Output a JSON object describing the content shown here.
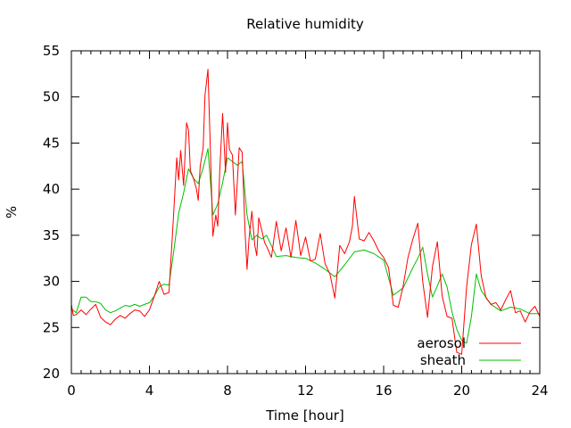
{
  "chart_data": {
    "type": "line",
    "title": "Relative humidity",
    "xlabel": "Time [hour]",
    "ylabel": "%",
    "xlim": [
      0,
      24
    ],
    "ylim": [
      20,
      55
    ],
    "xticks": [
      "0",
      "4",
      "8",
      "12",
      "16",
      "20",
      "24"
    ],
    "yticks": [
      "20",
      "25",
      "30",
      "35",
      "40",
      "45",
      "50",
      "55"
    ],
    "grid": false,
    "legend_position": "bottom-right",
    "series": [
      {
        "name": "aerosol",
        "color": "#ff0000",
        "x": [
          0,
          0.1,
          0.25,
          0.5,
          0.75,
          1.0,
          1.25,
          1.5,
          1.75,
          2.0,
          2.25,
          2.5,
          2.75,
          3.0,
          3.25,
          3.5,
          3.75,
          4.0,
          4.25,
          4.5,
          4.75,
          5.0,
          5.25,
          5.4,
          5.5,
          5.6,
          5.75,
          5.9,
          6.0,
          6.1,
          6.25,
          6.4,
          6.5,
          6.6,
          6.75,
          6.85,
          7.0,
          7.1,
          7.25,
          7.4,
          7.5,
          7.6,
          7.75,
          7.9,
          8.0,
          8.1,
          8.25,
          8.4,
          8.5,
          8.6,
          8.75,
          8.9,
          9.0,
          9.1,
          9.25,
          9.4,
          9.5,
          9.6,
          9.75,
          9.9,
          10.0,
          10.25,
          10.5,
          10.75,
          11.0,
          11.25,
          11.5,
          11.75,
          12.0,
          12.25,
          12.5,
          12.75,
          13.0,
          13.25,
          13.5,
          13.75,
          14.0,
          14.25,
          14.4,
          14.5,
          14.75,
          15.0,
          15.25,
          15.5,
          15.75,
          16.0,
          16.25,
          16.5,
          16.75,
          17.0,
          17.25,
          17.5,
          17.75,
          18.0,
          18.25,
          18.5,
          18.75,
          19.0,
          19.25,
          19.5,
          19.75,
          20.0,
          20.25,
          20.5,
          20.75,
          21.0,
          21.25,
          21.5,
          21.75,
          22.0,
          22.25,
          22.5,
          22.75,
          23.0,
          23.25,
          23.5,
          23.75,
          24.0
        ],
        "y": [
          27.5,
          26.3,
          26.4,
          26.9,
          26.4,
          27.0,
          27.5,
          26.1,
          25.6,
          25.3,
          25.9,
          26.3,
          26.0,
          26.5,
          26.9,
          26.8,
          26.2,
          26.9,
          28.4,
          30.0,
          28.6,
          28.8,
          37.6,
          43.4,
          41.0,
          44.2,
          40.4,
          47.2,
          46.4,
          42.0,
          41.2,
          40.1,
          38.8,
          42.5,
          44.5,
          50.2,
          53.0,
          45.9,
          34.9,
          37.2,
          36.0,
          42.0,
          48.2,
          41.8,
          47.2,
          44.3,
          43.7,
          37.2,
          40.6,
          44.5,
          44.0,
          35.3,
          31.3,
          34.6,
          37.6,
          33.9,
          32.8,
          36.9,
          35.6,
          34.2,
          33.8,
          32.6,
          36.5,
          33.3,
          35.8,
          32.6,
          36.6,
          32.8,
          34.8,
          32.2,
          32.4,
          35.2,
          31.9,
          30.8,
          28.2,
          33.9,
          33.0,
          34.3,
          36.0,
          39.2,
          34.6,
          34.4,
          35.3,
          34.4,
          33.3,
          32.6,
          31.5,
          27.4,
          27.2,
          29.5,
          32.6,
          34.6,
          36.3,
          30.0,
          26.1,
          31.6,
          34.3,
          28.4,
          26.2,
          26.0,
          22.3,
          22.1,
          29.4,
          34.0,
          36.2,
          30.6,
          28.2,
          27.5,
          27.7,
          26.9,
          28.0,
          29.0,
          26.6,
          26.8,
          25.6,
          26.7,
          27.3,
          26.2
        ]
      },
      {
        "name": "sheath",
        "color": "#00c000",
        "x": [
          0,
          0.25,
          0.5,
          0.75,
          1.0,
          1.25,
          1.5,
          1.75,
          2.0,
          2.25,
          2.5,
          2.75,
          3.0,
          3.25,
          3.5,
          3.75,
          4.0,
          4.25,
          4.5,
          4.75,
          5.0,
          5.25,
          5.5,
          5.75,
          6.0,
          6.25,
          6.5,
          6.75,
          7.0,
          7.25,
          7.5,
          7.75,
          8.0,
          8.25,
          8.5,
          8.75,
          9.0,
          9.25,
          9.5,
          9.75,
          10.0,
          10.5,
          11.0,
          11.5,
          12.0,
          12.5,
          13.0,
          13.5,
          14.0,
          14.5,
          15.0,
          15.5,
          16.0,
          16.5,
          17.0,
          17.5,
          17.75,
          18.0,
          18.25,
          18.5,
          18.75,
          19.0,
          19.25,
          19.5,
          19.75,
          20.0,
          20.25,
          20.5,
          20.75,
          21.0,
          21.5,
          22.0,
          22.5,
          23.0,
          23.5,
          24.0
        ],
        "y": [
          27.0,
          26.6,
          28.3,
          28.3,
          27.8,
          27.8,
          27.6,
          26.9,
          26.6,
          26.8,
          27.1,
          27.4,
          27.3,
          27.5,
          27.3,
          27.5,
          27.7,
          28.4,
          29.4,
          29.7,
          29.6,
          33.3,
          37.4,
          39.6,
          42.2,
          41.2,
          40.6,
          42.3,
          44.4,
          37.2,
          38.4,
          40.7,
          43.4,
          43.0,
          42.6,
          43.0,
          37.2,
          34.5,
          35.0,
          34.6,
          35.0,
          32.7,
          32.8,
          32.6,
          32.5,
          32.0,
          31.3,
          30.5,
          31.8,
          33.2,
          33.4,
          33.0,
          32.3,
          28.5,
          29.3,
          31.5,
          32.5,
          33.7,
          30.8,
          28.3,
          29.5,
          30.8,
          29.4,
          26.7,
          24.8,
          23.6,
          23.3,
          26.2,
          30.8,
          29.0,
          27.5,
          26.8,
          27.2,
          27.0,
          26.5,
          26.5
        ]
      }
    ]
  }
}
